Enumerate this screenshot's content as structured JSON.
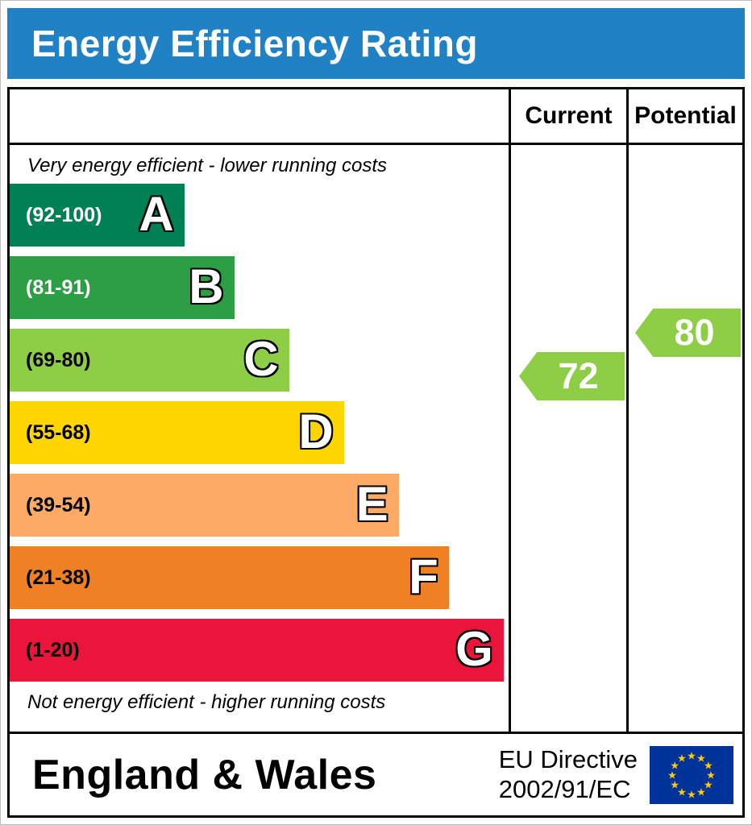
{
  "header": {
    "title": "Energy Efficiency Rating",
    "background_color": "#2081c4",
    "text_color": "#ffffff"
  },
  "columns": {
    "current_label": "Current",
    "potential_label": "Potential"
  },
  "chart_data": {
    "type": "bar",
    "title": "Energy Efficiency Rating",
    "top_note": "Very energy efficient - lower running costs",
    "bottom_note": "Not energy efficient - higher running costs",
    "bands": [
      {
        "letter": "A",
        "range": "(92-100)",
        "min": 92,
        "max": 100,
        "color": "#008054",
        "text_color": "#ffffff",
        "width_pct": 35
      },
      {
        "letter": "B",
        "range": "(81-91)",
        "min": 81,
        "max": 91,
        "color": "#2c9f45",
        "text_color": "#ffffff",
        "width_pct": 45
      },
      {
        "letter": "C",
        "range": "(69-80)",
        "min": 69,
        "max": 80,
        "color": "#8dce46",
        "text_color": "#000000",
        "width_pct": 56
      },
      {
        "letter": "D",
        "range": "(55-68)",
        "min": 55,
        "max": 68,
        "color": "#ffd500",
        "text_color": "#000000",
        "width_pct": 67
      },
      {
        "letter": "E",
        "range": "(39-54)",
        "min": 39,
        "max": 54,
        "color": "#fcaa65",
        "text_color": "#000000",
        "width_pct": 78
      },
      {
        "letter": "F",
        "range": "(21-38)",
        "min": 21,
        "max": 38,
        "color": "#ef8023",
        "text_color": "#000000",
        "width_pct": 88
      },
      {
        "letter": "G",
        "range": "(1-20)",
        "min": 1,
        "max": 20,
        "color": "#e9153b",
        "text_color": "#000000",
        "width_pct": 99
      }
    ],
    "current": {
      "value": 72,
      "color": "#8dce46"
    },
    "potential": {
      "value": 80,
      "color": "#8dce46"
    }
  },
  "footer": {
    "region": "England & Wales",
    "directive_line1": "EU Directive",
    "directive_line2": "2002/91/EC",
    "eu_flag": {
      "background_color": "#003399",
      "star_color": "#ffcc00"
    }
  }
}
